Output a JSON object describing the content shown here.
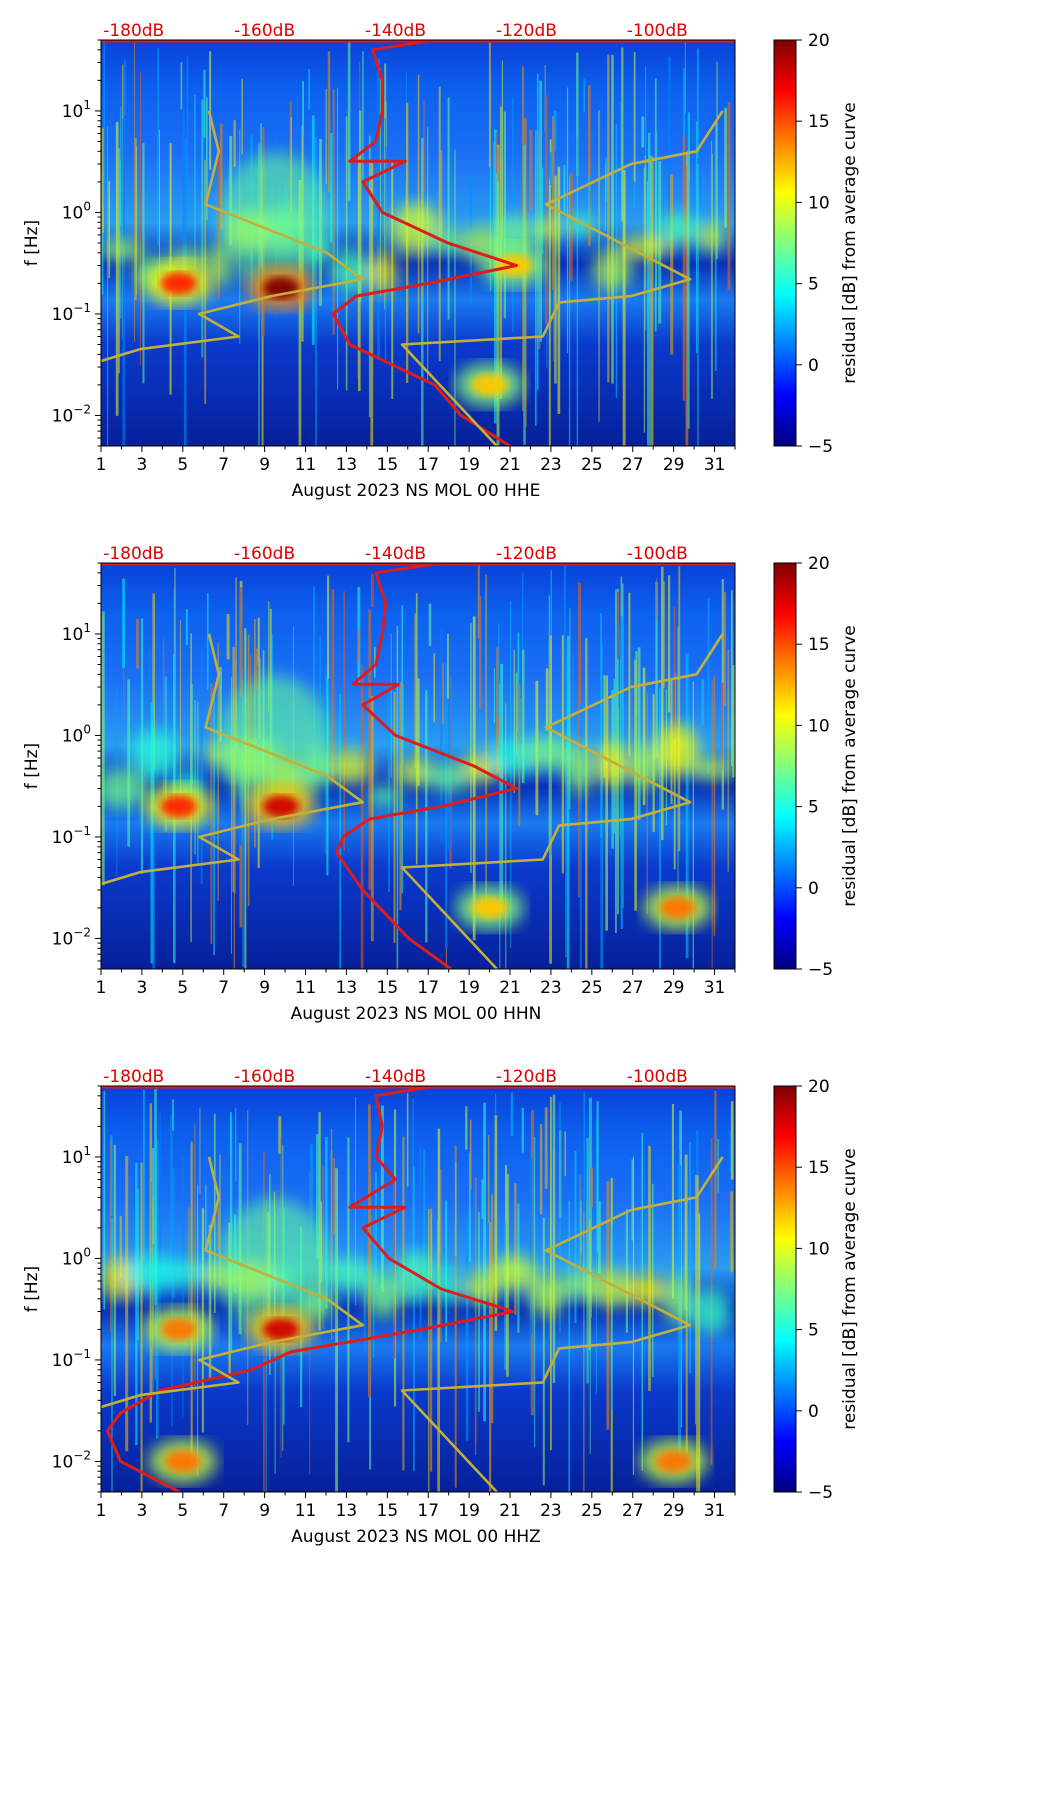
{
  "colors": {
    "average_curve": "#dd1c1c",
    "noise_model": "#c2b03a",
    "db_label": "#e00000"
  },
  "chart_data": [
    {
      "type": "heatmap",
      "title": "",
      "xlabel": "August 2023 NS MOL 00 HHE",
      "ylabel": "f [Hz]",
      "colorbar_label": "residual [dB] from average curve",
      "colorbar_ticks": [
        "20",
        "15",
        "10",
        "5",
        "0",
        "−5"
      ],
      "colorbar_range": [
        -5,
        20
      ],
      "colormap": "jet",
      "x_ticks": [
        "1",
        "3",
        "5",
        "7",
        "9",
        "11",
        "13",
        "15",
        "17",
        "19",
        "21",
        "23",
        "25",
        "27",
        "29",
        "31"
      ],
      "xlim": [
        1,
        32
      ],
      "y_ticks": [
        {
          "base": "10",
          "exp": "1"
        },
        {
          "base": "10",
          "exp": "0"
        },
        {
          "base": "10",
          "exp": "−1"
        },
        {
          "base": "10",
          "exp": "−2"
        }
      ],
      "ylim": [
        0.005,
        50
      ],
      "top_axis_labels": [
        "-180dB",
        "-160dB",
        "-140dB",
        "-120dB",
        "-100dB"
      ],
      "top_axis_values": [
        -180,
        -160,
        -140,
        -120,
        -100
      ],
      "hotspots": [
        {
          "day": 9.8,
          "freq": 0.18,
          "strength": 20
        },
        {
          "day": 4.8,
          "freq": 0.2,
          "strength": 16
        },
        {
          "day": 20,
          "freq": 0.02,
          "strength": 12
        },
        {
          "day": 21.2,
          "freq": 0.3,
          "strength": 12
        }
      ],
      "series": [
        {
          "name": "average curve",
          "color": "#dd1c1c",
          "points": [
            [
              50,
              -134
            ],
            [
              40,
              -143.5
            ],
            [
              20,
              -142
            ],
            [
              10,
              -142
            ],
            [
              5,
              -143
            ],
            [
              3.2,
              -147
            ],
            [
              3.2,
              -138.5
            ],
            [
              2,
              -145
            ],
            [
              1,
              -142
            ],
            [
              0.5,
              -132
            ],
            [
              0.3,
              -121.5
            ],
            [
              0.2,
              -135
            ],
            [
              0.15,
              -146
            ],
            [
              0.1,
              -149.5
            ],
            [
              0.05,
              -147
            ],
            [
              0.02,
              -134
            ],
            [
              0.01,
              -130
            ],
            [
              0.005,
              -122.5
            ]
          ]
        },
        {
          "name": "low noise model",
          "color": "#c2b03a",
          "points": [
            [
              10,
              -168.5
            ],
            [
              4,
              -167
            ],
            [
              1.2,
              -169
            ],
            [
              0.4,
              -150.5
            ],
            [
              0.22,
              -145
            ],
            [
              0.15,
              -159
            ],
            [
              0.1,
              -170
            ],
            [
              0.06,
              -164
            ],
            [
              0.045,
              -179
            ],
            [
              0.03,
              -188
            ],
            [
              0.02,
              -189
            ],
            [
              0.013,
              -188
            ],
            [
              0.01,
              -186
            ],
            [
              0.005,
              -186
            ]
          ]
        },
        {
          "name": "high noise model",
          "color": "#c2b03a",
          "points": [
            [
              10,
              -90
            ],
            [
              4,
              -94
            ],
            [
              3,
              -104
            ],
            [
              1.2,
              -117
            ],
            [
              0.22,
              -95
            ],
            [
              0.15,
              -104
            ],
            [
              0.13,
              -115
            ],
            [
              0.06,
              -117.5
            ],
            [
              0.05,
              -139
            ],
            [
              0.005,
              -124.5
            ]
          ]
        }
      ]
    },
    {
      "type": "heatmap",
      "title": "",
      "xlabel": "August 2023 NS MOL 00 HHN",
      "ylabel": "f [Hz]",
      "colorbar_label": "residual [dB] from average curve",
      "colorbar_ticks": [
        "20",
        "15",
        "10",
        "5",
        "0",
        "−5"
      ],
      "colorbar_range": [
        -5,
        20
      ],
      "colormap": "jet",
      "x_ticks": [
        "1",
        "3",
        "5",
        "7",
        "9",
        "11",
        "13",
        "15",
        "17",
        "19",
        "21",
        "23",
        "25",
        "27",
        "29",
        "31"
      ],
      "xlim": [
        1,
        32
      ],
      "y_ticks": [
        {
          "base": "10",
          "exp": "1"
        },
        {
          "base": "10",
          "exp": "0"
        },
        {
          "base": "10",
          "exp": "−1"
        },
        {
          "base": "10",
          "exp": "−2"
        }
      ],
      "ylim": [
        0.005,
        50
      ],
      "top_axis_labels": [
        "-180dB",
        "-160dB",
        "-140dB",
        "-120dB",
        "-100dB"
      ],
      "top_axis_values": [
        -180,
        -160,
        -140,
        -120,
        -100
      ],
      "hotspots": [
        {
          "day": 9.8,
          "freq": 0.2,
          "strength": 18
        },
        {
          "day": 4.8,
          "freq": 0.2,
          "strength": 16
        },
        {
          "day": 20,
          "freq": 0.02,
          "strength": 12
        },
        {
          "day": 29.2,
          "freq": 0.02,
          "strength": 14
        }
      ],
      "series": [
        {
          "name": "average curve",
          "color": "#dd1c1c",
          "points": [
            [
              50,
              -133
            ],
            [
              40,
              -143
            ],
            [
              20,
              -141.5
            ],
            [
              10,
              -142
            ],
            [
              5,
              -143
            ],
            [
              3.2,
              -146.5
            ],
            [
              3.2,
              -139.5
            ],
            [
              2,
              -145
            ],
            [
              1,
              -140
            ],
            [
              0.5,
              -128
            ],
            [
              0.3,
              -121.5
            ],
            [
              0.2,
              -133
            ],
            [
              0.15,
              -144
            ],
            [
              0.1,
              -148
            ],
            [
              0.07,
              -149
            ],
            [
              0.03,
              -145
            ],
            [
              0.01,
              -138
            ],
            [
              0.005,
              -131.5
            ]
          ]
        },
        {
          "name": "low noise model",
          "color": "#c2b03a",
          "points": [
            [
              10,
              -168.5
            ],
            [
              4,
              -167
            ],
            [
              1.2,
              -169
            ],
            [
              0.4,
              -150.5
            ],
            [
              0.22,
              -145
            ],
            [
              0.15,
              -159
            ],
            [
              0.1,
              -170
            ],
            [
              0.06,
              -164
            ],
            [
              0.045,
              -179
            ],
            [
              0.03,
              -188
            ],
            [
              0.02,
              -189
            ],
            [
              0.013,
              -188
            ],
            [
              0.01,
              -186
            ],
            [
              0.005,
              -186
            ]
          ]
        },
        {
          "name": "high noise model",
          "color": "#c2b03a",
          "points": [
            [
              10,
              -90
            ],
            [
              4,
              -94
            ],
            [
              3,
              -104
            ],
            [
              1.2,
              -117
            ],
            [
              0.22,
              -95
            ],
            [
              0.15,
              -104
            ],
            [
              0.13,
              -115
            ],
            [
              0.06,
              -117.5
            ],
            [
              0.05,
              -139
            ],
            [
              0.005,
              -124.5
            ]
          ]
        }
      ]
    },
    {
      "type": "heatmap",
      "title": "",
      "xlabel": "August 2023 NS MOL 00 HHZ",
      "ylabel": "f [Hz]",
      "colorbar_label": "residual [dB] from average curve",
      "colorbar_ticks": [
        "20",
        "15",
        "10",
        "5",
        "0",
        "−5"
      ],
      "colorbar_range": [
        -5,
        20
      ],
      "colormap": "jet",
      "x_ticks": [
        "1",
        "3",
        "5",
        "7",
        "9",
        "11",
        "13",
        "15",
        "17",
        "19",
        "21",
        "23",
        "25",
        "27",
        "29",
        "31"
      ],
      "xlim": [
        1,
        32
      ],
      "y_ticks": [
        {
          "base": "10",
          "exp": "1"
        },
        {
          "base": "10",
          "exp": "0"
        },
        {
          "base": "10",
          "exp": "−1"
        },
        {
          "base": "10",
          "exp": "−2"
        }
      ],
      "ylim": [
        0.005,
        50
      ],
      "top_axis_labels": [
        "-180dB",
        "-160dB",
        "-140dB",
        "-120dB",
        "-100dB"
      ],
      "top_axis_values": [
        -180,
        -160,
        -140,
        -120,
        -100
      ],
      "hotspots": [
        {
          "day": 9.8,
          "freq": 0.2,
          "strength": 18
        },
        {
          "day": 4.8,
          "freq": 0.2,
          "strength": 14
        },
        {
          "day": 5,
          "freq": 0.01,
          "strength": 14
        },
        {
          "day": 29,
          "freq": 0.01,
          "strength": 14
        }
      ],
      "series": [
        {
          "name": "average curve",
          "color": "#dd1c1c",
          "points": [
            [
              50,
              -134
            ],
            [
              40,
              -143
            ],
            [
              20,
              -142
            ],
            [
              10,
              -143
            ],
            [
              6,
              -140
            ],
            [
              3.2,
              -147
            ],
            [
              3.2,
              -138.5
            ],
            [
              2,
              -145
            ],
            [
              1,
              -141
            ],
            [
              0.5,
              -133
            ],
            [
              0.3,
              -122
            ],
            [
              0.2,
              -136
            ],
            [
              0.12,
              -156
            ],
            [
              0.08,
              -162
            ],
            [
              0.05,
              -176
            ],
            [
              0.03,
              -182
            ],
            [
              0.02,
              -184
            ],
            [
              0.01,
              -182
            ],
            [
              0.005,
              -173
            ]
          ]
        },
        {
          "name": "low noise model",
          "color": "#c2b03a",
          "points": [
            [
              10,
              -168.5
            ],
            [
              4,
              -167
            ],
            [
              1.2,
              -169
            ],
            [
              0.4,
              -150.5
            ],
            [
              0.22,
              -145
            ],
            [
              0.15,
              -159
            ],
            [
              0.1,
              -170
            ],
            [
              0.06,
              -164
            ],
            [
              0.045,
              -179
            ],
            [
              0.03,
              -188
            ],
            [
              0.02,
              -189
            ],
            [
              0.013,
              -188
            ],
            [
              0.01,
              -186
            ],
            [
              0.005,
              -186
            ]
          ]
        },
        {
          "name": "high noise model",
          "color": "#c2b03a",
          "points": [
            [
              10,
              -90
            ],
            [
              4,
              -94
            ],
            [
              3,
              -104
            ],
            [
              1.2,
              -117
            ],
            [
              0.22,
              -95
            ],
            [
              0.15,
              -104
            ],
            [
              0.13,
              -115
            ],
            [
              0.06,
              -117.5
            ],
            [
              0.05,
              -139
            ],
            [
              0.005,
              -124.5
            ]
          ]
        }
      ]
    }
  ]
}
